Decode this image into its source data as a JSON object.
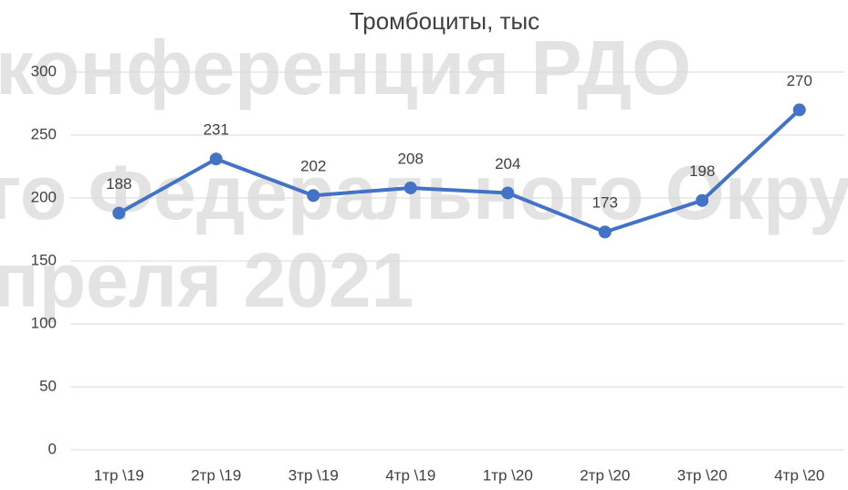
{
  "chart_data": {
    "type": "line",
    "title": "Тромбоциты, тыс",
    "watermarks": [
      "конференция РДО",
      "го Федерального Округ",
      "преля 2021"
    ],
    "categories": [
      "1тр \\19",
      "2тр \\19",
      "3тр \\19",
      "4тр \\19",
      "1тр \\20",
      "2тр \\20",
      "3тр \\20",
      "4тр \\20"
    ],
    "series": [
      {
        "name": "Тромбоциты",
        "color": "#4472c4",
        "values": [
          188,
          231,
          202,
          208,
          204,
          173,
          198,
          270
        ]
      }
    ],
    "ylim": [
      0,
      300
    ],
    "yticks": [
      0,
      50,
      100,
      150,
      200,
      250,
      300
    ],
    "grid": true
  }
}
